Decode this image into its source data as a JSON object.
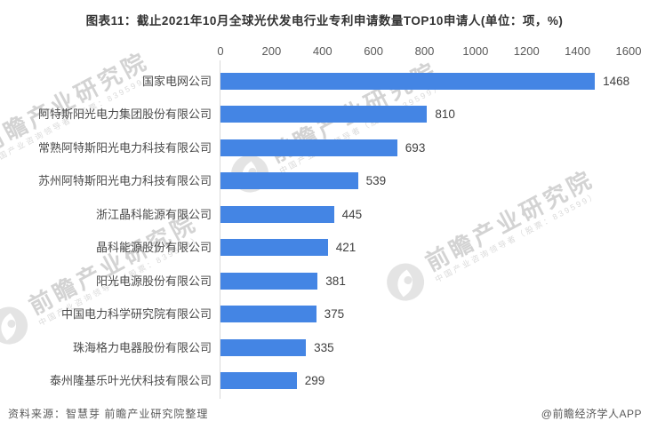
{
  "title": "图表11：截止2021年10月全球光伏发电行业专利申请数量TOP10申请人(单位：项，%)",
  "chart_data": {
    "type": "bar",
    "orientation": "horizontal",
    "title": "图表11：截止2021年10月全球光伏发电行业专利申请数量TOP10申请人(单位：项，%)",
    "categories": [
      "国家电网公司",
      "阿特斯阳光电力集团股份有限公司",
      "常熟阿特斯阳光电力科技有限公司",
      "苏州阿特斯阳光电力科技有限公司",
      "浙江晶科能源有限公司",
      "晶科能源股份有限公司",
      "阳光电源股份有限公司",
      "中国电力科学研究院有限公司",
      "珠海格力电器股份有限公司",
      "泰州隆基乐叶光伏科技有限公司"
    ],
    "values": [
      1468,
      810,
      693,
      539,
      445,
      421,
      381,
      375,
      335,
      299
    ],
    "xlabel": "",
    "ylabel": "",
    "xlim": [
      0,
      1600
    ],
    "x_ticks": [
      0,
      200,
      400,
      600,
      800,
      1000,
      1200,
      1400,
      1600
    ],
    "grid": false,
    "legend": false,
    "value_labels": true,
    "bar_color": "#4485e4"
  },
  "watermark": {
    "text": "前瞻产业研究院",
    "subtext": "中国产业咨询领导者（股票：839599）",
    "logo": "qianzhan-eye-logo"
  },
  "footer": {
    "source": "资料来源：智慧芽 前瞻产业研究院整理",
    "credit": "@前瞻经济学人APP"
  },
  "colors": {
    "bar": "#4485e4",
    "axis_line": "#d9d9d9",
    "title_text": "#333333",
    "category_text": "#4a4a4a",
    "tick_text": "#595959",
    "value_text": "#3f3f3f",
    "footer_text": "#595959",
    "watermark_text": "#d3d3d3",
    "background": "#ffffff"
  }
}
